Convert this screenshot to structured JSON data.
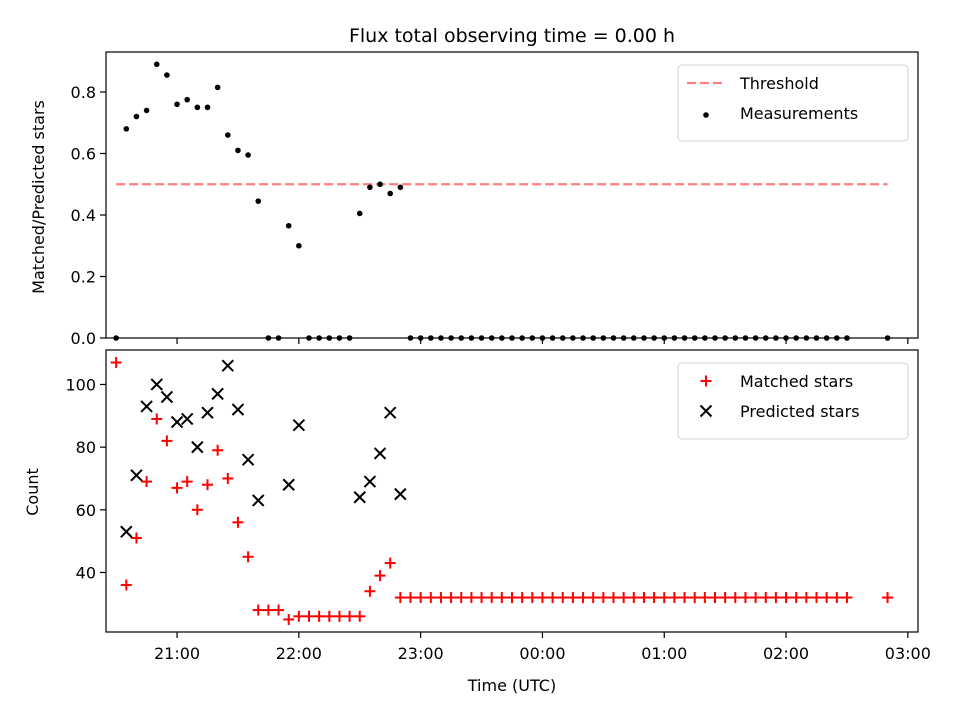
{
  "chart_data": [
    {
      "type": "scatter",
      "title": "Flux total observing time = 0.00 h",
      "xlabel": "",
      "ylabel": "Matched/Predicted stars",
      "xlim": [
        "20:25",
        "03:05"
      ],
      "ylim": [
        0,
        0.93
      ],
      "yticks": [
        0.0,
        0.2,
        0.4,
        0.6,
        0.8
      ],
      "ytick_labels": [
        "0.0",
        "0.2",
        "0.4",
        "0.6",
        "0.8"
      ],
      "xticks": [
        "21:00",
        "22:00",
        "23:00",
        "00:00",
        "01:00",
        "02:00",
        "03:00"
      ],
      "show_xtick_labels": false,
      "legend_position": "top-right",
      "threshold": {
        "name": "Threshold",
        "value": 0.5,
        "x_range": [
          "20:30",
          "02:50"
        ],
        "color": "#ff7f7f",
        "style": "dashed"
      },
      "series": [
        {
          "name": "Measurements",
          "color": "#000000",
          "marker": "dot",
          "points": [
            [
              "20:30",
              0.0
            ],
            [
              "20:35",
              0.68
            ],
            [
              "20:40",
              0.72
            ],
            [
              "20:45",
              0.74
            ],
            [
              "20:50",
              0.89
            ],
            [
              "20:55",
              0.855
            ],
            [
              "21:00",
              0.76
            ],
            [
              "21:05",
              0.775
            ],
            [
              "21:10",
              0.75
            ],
            [
              "21:15",
              0.75
            ],
            [
              "21:20",
              0.815
            ],
            [
              "21:25",
              0.66
            ],
            [
              "21:30",
              0.61
            ],
            [
              "21:35",
              0.595
            ],
            [
              "21:40",
              0.445
            ],
            [
              "21:45",
              0.0
            ],
            [
              "21:50",
              0.0
            ],
            [
              "21:55",
              0.365
            ],
            [
              "22:00",
              0.3
            ],
            [
              "22:05",
              0.0
            ],
            [
              "22:10",
              0.0
            ],
            [
              "22:15",
              0.0
            ],
            [
              "22:20",
              0.0
            ],
            [
              "22:25",
              0.0
            ],
            [
              "22:30",
              0.405
            ],
            [
              "22:35",
              0.49
            ],
            [
              "22:40",
              0.5
            ],
            [
              "22:45",
              0.47
            ],
            [
              "22:50",
              0.49
            ],
            [
              "22:55",
              0.0
            ],
            [
              "23:00",
              0.0
            ],
            [
              "23:05",
              0.0
            ],
            [
              "23:10",
              0.0
            ],
            [
              "23:15",
              0.0
            ],
            [
              "23:20",
              0.0
            ],
            [
              "23:25",
              0.0
            ],
            [
              "23:30",
              0.0
            ],
            [
              "23:35",
              0.0
            ],
            [
              "23:40",
              0.0
            ],
            [
              "23:45",
              0.0
            ],
            [
              "23:50",
              0.0
            ],
            [
              "23:55",
              0.0
            ],
            [
              "00:00",
              0.0
            ],
            [
              "00:05",
              0.0
            ],
            [
              "00:10",
              0.0
            ],
            [
              "00:15",
              0.0
            ],
            [
              "00:20",
              0.0
            ],
            [
              "00:25",
              0.0
            ],
            [
              "00:30",
              0.0
            ],
            [
              "00:35",
              0.0
            ],
            [
              "00:40",
              0.0
            ],
            [
              "00:45",
              0.0
            ],
            [
              "00:50",
              0.0
            ],
            [
              "00:55",
              0.0
            ],
            [
              "01:00",
              0.0
            ],
            [
              "01:05",
              0.0
            ],
            [
              "01:10",
              0.0
            ],
            [
              "01:15",
              0.0
            ],
            [
              "01:20",
              0.0
            ],
            [
              "01:25",
              0.0
            ],
            [
              "01:30",
              0.0
            ],
            [
              "01:35",
              0.0
            ],
            [
              "01:40",
              0.0
            ],
            [
              "01:45",
              0.0
            ],
            [
              "01:50",
              0.0
            ],
            [
              "01:55",
              0.0
            ],
            [
              "02:00",
              0.0
            ],
            [
              "02:05",
              0.0
            ],
            [
              "02:10",
              0.0
            ],
            [
              "02:15",
              0.0
            ],
            [
              "02:20",
              0.0
            ],
            [
              "02:25",
              0.0
            ],
            [
              "02:30",
              0.0
            ],
            [
              "02:50",
              0.0
            ]
          ]
        }
      ]
    },
    {
      "type": "scatter",
      "title": "",
      "xlabel": "Time (UTC)",
      "ylabel": "Count",
      "xlim": [
        "20:25",
        "03:05"
      ],
      "ylim": [
        21,
        111
      ],
      "yticks": [
        40,
        60,
        80,
        100
      ],
      "ytick_labels": [
        "40",
        "60",
        "80",
        "100"
      ],
      "xticks": [
        "21:00",
        "22:00",
        "23:00",
        "00:00",
        "01:00",
        "02:00",
        "03:00"
      ],
      "xtick_labels": [
        "21:00",
        "22:00",
        "23:00",
        "00:00",
        "01:00",
        "02:00",
        "03:00"
      ],
      "show_xtick_labels": true,
      "legend_position": "top-right",
      "series": [
        {
          "name": "Matched stars",
          "color": "#ff0000",
          "marker": "plus",
          "points": [
            [
              "20:30",
              107
            ],
            [
              "20:35",
              36
            ],
            [
              "20:40",
              51
            ],
            [
              "20:45",
              69
            ],
            [
              "20:50",
              89
            ],
            [
              "20:55",
              82
            ],
            [
              "21:00",
              67
            ],
            [
              "21:05",
              69
            ],
            [
              "21:10",
              60
            ],
            [
              "21:15",
              68
            ],
            [
              "21:20",
              79
            ],
            [
              "21:25",
              70
            ],
            [
              "21:30",
              56
            ],
            [
              "21:35",
              45
            ],
            [
              "21:40",
              28
            ],
            [
              "21:45",
              28
            ],
            [
              "21:50",
              28
            ],
            [
              "21:55",
              25
            ],
            [
              "22:00",
              26
            ],
            [
              "22:05",
              26
            ],
            [
              "22:10",
              26
            ],
            [
              "22:15",
              26
            ],
            [
              "22:20",
              26
            ],
            [
              "22:25",
              26
            ],
            [
              "22:30",
              26
            ],
            [
              "22:35",
              34
            ],
            [
              "22:40",
              39
            ],
            [
              "22:45",
              43
            ],
            [
              "22:50",
              32
            ],
            [
              "22:55",
              32
            ],
            [
              "23:00",
              32
            ],
            [
              "23:05",
              32
            ],
            [
              "23:10",
              32
            ],
            [
              "23:15",
              32
            ],
            [
              "23:20",
              32
            ],
            [
              "23:25",
              32
            ],
            [
              "23:30",
              32
            ],
            [
              "23:35",
              32
            ],
            [
              "23:40",
              32
            ],
            [
              "23:45",
              32
            ],
            [
              "23:50",
              32
            ],
            [
              "23:55",
              32
            ],
            [
              "00:00",
              32
            ],
            [
              "00:05",
              32
            ],
            [
              "00:10",
              32
            ],
            [
              "00:15",
              32
            ],
            [
              "00:20",
              32
            ],
            [
              "00:25",
              32
            ],
            [
              "00:30",
              32
            ],
            [
              "00:35",
              32
            ],
            [
              "00:40",
              32
            ],
            [
              "00:45",
              32
            ],
            [
              "00:50",
              32
            ],
            [
              "00:55",
              32
            ],
            [
              "01:00",
              32
            ],
            [
              "01:05",
              32
            ],
            [
              "01:10",
              32
            ],
            [
              "01:15",
              32
            ],
            [
              "01:20",
              32
            ],
            [
              "01:25",
              32
            ],
            [
              "01:30",
              32
            ],
            [
              "01:35",
              32
            ],
            [
              "01:40",
              32
            ],
            [
              "01:45",
              32
            ],
            [
              "01:50",
              32
            ],
            [
              "01:55",
              32
            ],
            [
              "02:00",
              32
            ],
            [
              "02:05",
              32
            ],
            [
              "02:10",
              32
            ],
            [
              "02:15",
              32
            ],
            [
              "02:20",
              32
            ],
            [
              "02:25",
              32
            ],
            [
              "02:30",
              32
            ],
            [
              "02:50",
              32
            ]
          ]
        },
        {
          "name": "Predicted stars",
          "color": "#000000",
          "marker": "x",
          "points": [
            [
              "20:35",
              53
            ],
            [
              "20:40",
              71
            ],
            [
              "20:45",
              93
            ],
            [
              "20:50",
              100
            ],
            [
              "20:55",
              96
            ],
            [
              "21:00",
              88
            ],
            [
              "21:05",
              89
            ],
            [
              "21:10",
              80
            ],
            [
              "21:15",
              91
            ],
            [
              "21:20",
              97
            ],
            [
              "21:25",
              106
            ],
            [
              "21:30",
              92
            ],
            [
              "21:35",
              76
            ],
            [
              "21:40",
              63
            ],
            [
              "21:55",
              68
            ],
            [
              "22:00",
              87
            ],
            [
              "22:30",
              64
            ],
            [
              "22:35",
              69
            ],
            [
              "22:40",
              78
            ],
            [
              "22:45",
              91
            ],
            [
              "22:50",
              65
            ]
          ]
        }
      ]
    }
  ]
}
